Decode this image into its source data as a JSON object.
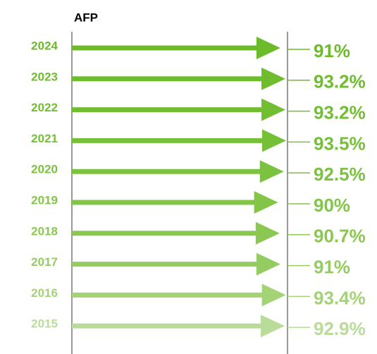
{
  "chart_data": {
    "type": "arrow",
    "title": "AFP",
    "categories": [
      "2024",
      "2023",
      "2022",
      "2021",
      "2020",
      "2019",
      "2018",
      "2017",
      "2016",
      "2015"
    ],
    "values": [
      91,
      93.2,
      93.2,
      93.5,
      92.5,
      90,
      90.7,
      91,
      93.4,
      92.9
    ],
    "value_labels": [
      "91%",
      "93.2%",
      "93.2%",
      "93.5%",
      "92.5%",
      "90%",
      "90.7%",
      "91%",
      "93.4%",
      "92.9%"
    ],
    "colors": [
      "#6cbb2a",
      "#6fbd2e",
      "#72be33",
      "#76c038",
      "#7bc23f",
      "#82c547",
      "#8ac852",
      "#95cc62",
      "#a4d376",
      "#b9dd98"
    ]
  }
}
